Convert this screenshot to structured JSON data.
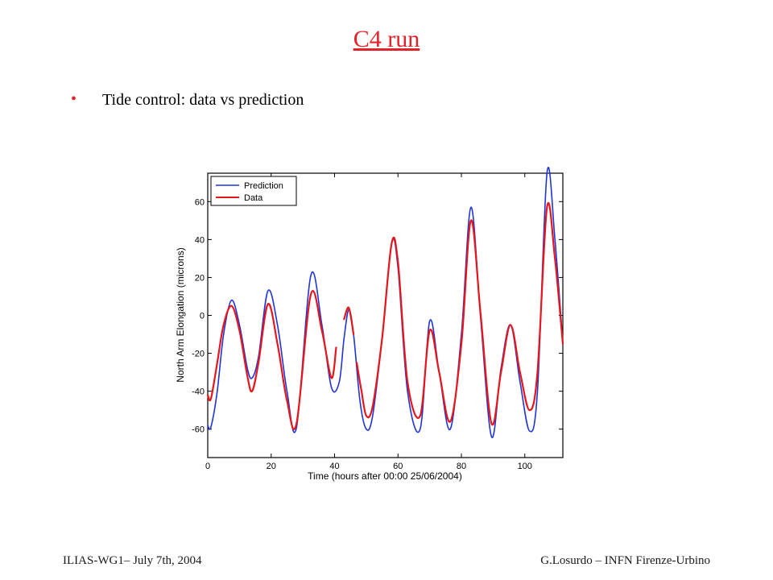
{
  "slide": {
    "title": "C4 run",
    "bullet": "•",
    "bullet_text": "Tide control: data vs prediction",
    "footer_left": "ILIAS-WG1– July 7th, 2004",
    "footer_right": "G.Losurdo – INFN Firenze-Urbino"
  },
  "colors": {
    "title": "#e3232a",
    "prediction": "#1f35d8",
    "data": "#e6161b"
  },
  "chart_data": {
    "type": "line",
    "title": "",
    "xlabel": "Time (hours after 00:00 25/06/2004)",
    "ylabel": "North Arm Elongation (microns)",
    "xlim": [
      0,
      112
    ],
    "ylim": [
      -75,
      75
    ],
    "xticks": [
      0,
      20,
      40,
      60,
      80,
      100
    ],
    "yticks": [
      -60,
      -40,
      -20,
      0,
      20,
      40,
      60
    ],
    "grid": false,
    "legend_position": "top-left",
    "series": [
      {
        "name": "Prediction",
        "color": "#1f35d8",
        "x": [
          0,
          1,
          3,
          5,
          7.5,
          10,
          12.5,
          14,
          16,
          19,
          22,
          25,
          28,
          32.5,
          36,
          39,
          41.5,
          43,
          44.5,
          46,
          48,
          50,
          52,
          55,
          58,
          60,
          63,
          67,
          70,
          73,
          76.5,
          80,
          83,
          86,
          89.5,
          92.5,
          95.5,
          98.5,
          101.5,
          104,
          107,
          109.5,
          112
        ],
        "y": [
          -58,
          -59,
          -40,
          -10,
          8,
          -5,
          -28,
          -33,
          -22,
          13,
          -5,
          -40,
          -59,
          21,
          -5,
          -38,
          -35,
          -12,
          3,
          -10,
          -45,
          -60,
          -53,
          -12,
          38,
          25,
          -40,
          -60,
          -3,
          -30,
          -60,
          -10,
          57,
          0,
          -64,
          -28,
          -5,
          -35,
          -61,
          -40,
          75,
          40,
          -15
        ]
      },
      {
        "name": "Data",
        "color": "#e6161b",
        "x": [
          0,
          1,
          3,
          5,
          7.5,
          10,
          12.5,
          14,
          16,
          19,
          22,
          25,
          28,
          32.5,
          36,
          39,
          40.5,
          null,
          43,
          44.5,
          46,
          null,
          47,
          48.5,
          50,
          52,
          55,
          58,
          60,
          63,
          67,
          70,
          73,
          76.5,
          80,
          83,
          86,
          89.5,
          92.5,
          95.5,
          98.5,
          101.5,
          104,
          107,
          109.5,
          112
        ],
        "y": [
          -42,
          -44,
          -25,
          -5,
          5,
          -8,
          -32,
          -40,
          -25,
          6,
          -15,
          -45,
          -57,
          11,
          -8,
          -33,
          -17,
          null,
          -2,
          4,
          -10,
          null,
          -25,
          -40,
          -53,
          -48,
          -12,
          38,
          28,
          -35,
          -53,
          -8,
          -30,
          -56,
          -15,
          50,
          2,
          -57,
          -30,
          -5,
          -30,
          -50,
          -30,
          57,
          30,
          -15
        ]
      }
    ]
  }
}
